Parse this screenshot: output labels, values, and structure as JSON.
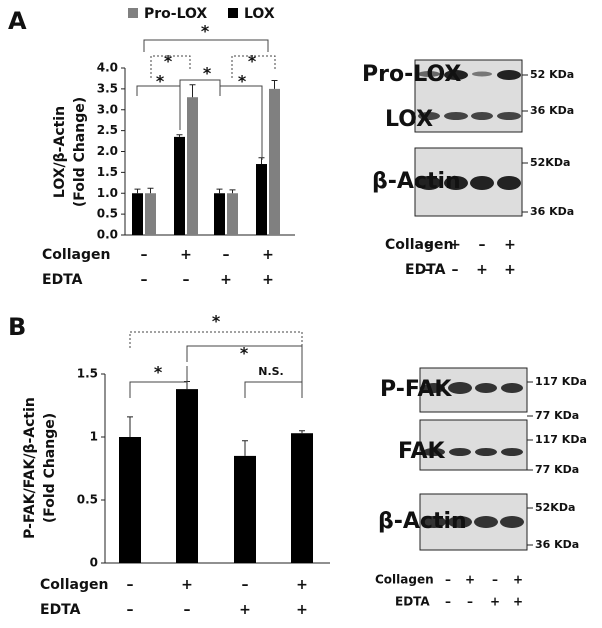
{
  "chart_data": [
    {
      "type": "bar",
      "panel": "A",
      "ylabel": [
        "LOX/β-Actin",
        "(Fold Change)"
      ],
      "series": [
        {
          "name": "LOX",
          "color": "#000000",
          "values": [
            1.0,
            2.35,
            1.0,
            1.7
          ],
          "errors": [
            0.1,
            0.05,
            0.1,
            0.15
          ]
        },
        {
          "name": "Pro-LOX",
          "color": "#808080",
          "values": [
            1.0,
            3.3,
            1.0,
            3.5
          ],
          "errors": [
            0.12,
            0.3,
            0.08,
            0.2
          ]
        }
      ],
      "ylim": [
        0,
        4.0
      ],
      "yticks": [
        {
          "value": 0,
          "label": "0.0"
        },
        {
          "value": 0.5,
          "label": "0.5"
        },
        {
          "value": 1,
          "label": "1.0"
        },
        {
          "value": 1.5,
          "label": "1.5"
        },
        {
          "value": 2,
          "label": "2.0"
        },
        {
          "value": 2.5,
          "label": "2.5"
        },
        {
          "value": 3,
          "label": "3.0"
        },
        {
          "value": 3.5,
          "label": "3.5"
        },
        {
          "value": 4,
          "label": "4.0"
        }
      ],
      "conditions": [
        {
          "name": "Collagen",
          "values": [
            "–",
            "+",
            "–",
            "+"
          ]
        },
        {
          "name": "EDTA",
          "values": [
            "–",
            "–",
            "+",
            "+"
          ]
        }
      ],
      "annotations": [
        "*",
        "*",
        "*",
        "*",
        "*",
        "*"
      ]
    },
    {
      "type": "bar",
      "panel": "B",
      "ylabel": [
        "P-FAK/FAK/β-Actin",
        "(Fold Change)"
      ],
      "series": [
        {
          "name": null,
          "color": "#000000",
          "values": [
            1.0,
            1.38,
            0.85,
            1.03
          ],
          "errors": [
            0.16,
            0.06,
            0.12,
            0.02
          ]
        }
      ],
      "ylim": [
        0,
        1.5
      ],
      "yticks": [
        0,
        0.5,
        1,
        1.5
      ],
      "conditions": [
        {
          "name": "Collagen",
          "values": [
            "–",
            "+",
            "–",
            "+"
          ]
        },
        {
          "name": "EDTA",
          "values": [
            "–",
            "–",
            "+",
            "+"
          ]
        }
      ],
      "annotations": [
        "*",
        "*",
        "*",
        "N.S."
      ]
    }
  ],
  "blots": [
    {
      "rows": [
        "Pro-LOX",
        "LOX",
        "β-Actin"
      ],
      "markers": [
        "52 KDa",
        "36 KDa",
        "52KDa",
        "36 KDa"
      ],
      "conditions": [
        {
          "name": "Collagen",
          "values": [
            "–",
            "+",
            "–",
            "+"
          ]
        },
        {
          "name": "EDTA",
          "values": [
            "–",
            "–",
            "+",
            "+"
          ]
        }
      ]
    },
    {
      "rows": [
        "P-FAK",
        "FAK",
        "β-Actin"
      ],
      "markers": [
        "117 KDa",
        "77 KDa",
        "117 KDa",
        "77 KDa",
        "52KDa",
        "36 KDa"
      ],
      "conditions": [
        {
          "name": "Collagen",
          "values": [
            "–",
            "+",
            "–",
            "+"
          ]
        },
        {
          "name": "EDTA",
          "values": [
            "–",
            "–",
            "+",
            "+"
          ]
        }
      ]
    }
  ]
}
